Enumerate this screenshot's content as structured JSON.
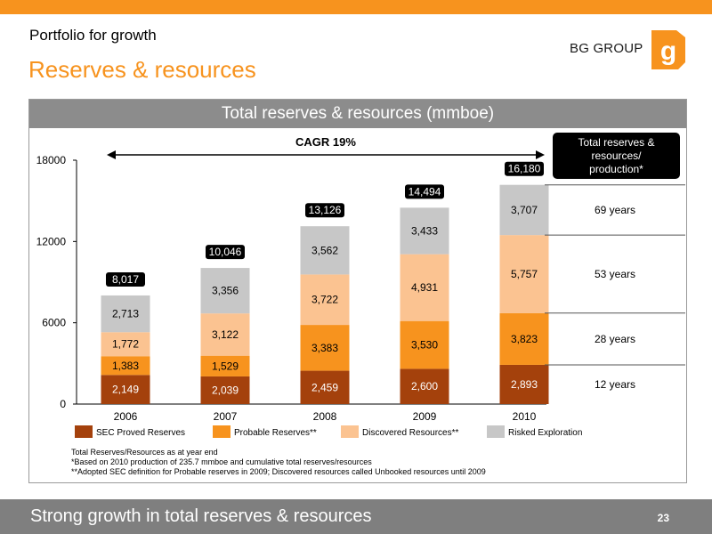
{
  "header": {
    "subtitle": "Portfolio for growth",
    "title": "Reserves & resources",
    "logo_text": "BG GROUP",
    "logo_mark": "g"
  },
  "colors": {
    "accent": "#f7931e",
    "header_grey": "#8c8c8c",
    "footer_grey": "#7f7f7f"
  },
  "chart_data": {
    "type": "bar",
    "stacked": true,
    "title": "Total reserves & resources (mmboe)",
    "categories": [
      "2006",
      "2007",
      "2008",
      "2009",
      "2010"
    ],
    "series": [
      {
        "name": "SEC Proved Reserves",
        "color": "#a4410c",
        "values": [
          2149,
          2039,
          2459,
          2600,
          2893
        ],
        "labels": [
          "2,149",
          "2,039",
          "2,459",
          "2,600",
          "2,893"
        ]
      },
      {
        "name": "Probable Reserves**",
        "color": "#f7931e",
        "values": [
          1383,
          1529,
          3383,
          3530,
          3823
        ],
        "labels": [
          "1,383",
          "1,529",
          "3,383",
          "3,530",
          "3,823"
        ]
      },
      {
        "name": "Discovered Resources**",
        "color": "#fbc391",
        "values": [
          1772,
          3122,
          3722,
          4931,
          5757
        ],
        "labels": [
          "1,772",
          "3,122",
          "3,722",
          "4,931",
          "5,757"
        ]
      },
      {
        "name": "Risked Exploration",
        "color": "#c7c7c7",
        "values": [
          2713,
          3356,
          3562,
          3433,
          3707
        ],
        "labels": [
          "2,713",
          "3,356",
          "3,562",
          "3,433",
          "3,707"
        ]
      }
    ],
    "totals": [
      "8,017",
      "10,046",
      "13,126",
      "14,494",
      "16,180"
    ],
    "ylim": [
      0,
      18000
    ],
    "yticks": [
      0,
      6000,
      12000,
      18000
    ],
    "ytick_labels": [
      "0",
      "6000",
      "12000",
      "18000"
    ],
    "grid": false,
    "legend_position": "bottom",
    "cagr_label": "CAGR 19%",
    "side_header": "Total reserves & resources/ production*",
    "side_rows": [
      {
        "label": "12 years",
        "from": 0,
        "to": 2893
      },
      {
        "label": "28 years",
        "from": 2893,
        "to": 6716
      },
      {
        "label": "53 years",
        "from": 6716,
        "to": 12473
      },
      {
        "label": "69 years",
        "from": 12473,
        "to": 16180
      }
    ]
  },
  "notes": [
    "Total Reserves/Resources as at year end",
    "*Based on 2010 production of 235.7 mmboe and cumulative total reserves/resources",
    "**Adopted SEC definition for Probable reserves in 2009; Discovered resources called Unbooked resources until 2009"
  ],
  "footer": {
    "text": "Strong growth in total reserves & resources",
    "page_number": "23"
  }
}
